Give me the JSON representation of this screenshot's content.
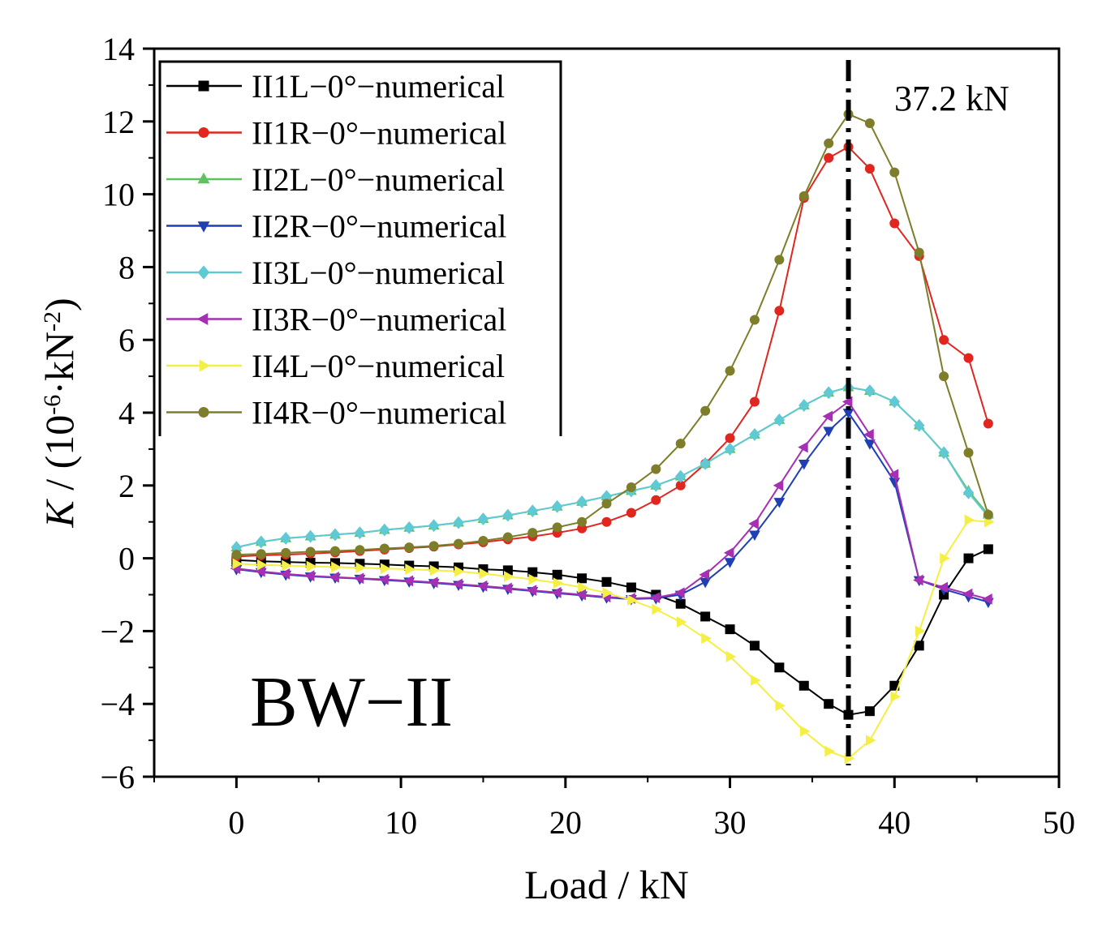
{
  "chart_data": {
    "type": "line",
    "xlabel": "Load / kN",
    "ylabel": {
      "italic": "K",
      "text": " / (10",
      "sup1": "-6",
      "mid": "·kN",
      "sup2": "-2",
      "end": ")"
    },
    "xlim": [
      -5,
      50
    ],
    "ylim": [
      -6,
      14
    ],
    "xticks": [
      0,
      10,
      20,
      30,
      40,
      50
    ],
    "yticks": [
      -6,
      -4,
      -2,
      0,
      2,
      4,
      6,
      8,
      10,
      12,
      14
    ],
    "xtick_labels": [
      "0",
      "10",
      "20",
      "30",
      "40",
      "50"
    ],
    "ytick_labels": [
      "−6",
      "−4",
      "−2",
      "0",
      "2",
      "4",
      "6",
      "8",
      "10",
      "12",
      "14"
    ],
    "grid": false,
    "legend_position": "top-left",
    "panel_label": "BW−II",
    "vline": {
      "x": 37.2,
      "label": "37.2 kN",
      "style": "dash-dot"
    },
    "x": [
      0,
      1.5,
      3,
      4.5,
      6,
      7.5,
      9,
      10.5,
      12,
      13.5,
      15,
      16.5,
      18,
      19.5,
      21,
      22.5,
      24,
      25.5,
      27,
      28.5,
      30,
      31.5,
      33,
      34.5,
      36,
      37.2,
      38.5,
      40,
      41.5,
      43,
      44.5,
      45.7
    ],
    "series": [
      {
        "name": "II1L−0°−numerical",
        "color": "#000000",
        "marker": "square",
        "values": [
          -0.05,
          -0.08,
          -0.1,
          -0.12,
          -0.13,
          -0.15,
          -0.17,
          -0.2,
          -0.22,
          -0.25,
          -0.3,
          -0.33,
          -0.38,
          -0.45,
          -0.55,
          -0.65,
          -0.8,
          -1.0,
          -1.25,
          -1.6,
          -1.95,
          -2.4,
          -3.0,
          -3.5,
          -4.0,
          -4.3,
          -4.2,
          -3.5,
          -2.4,
          -1.0,
          0.0,
          0.25
        ]
      },
      {
        "name": "II1R−0°−numerical",
        "color": "#e0261f",
        "marker": "circle",
        "values": [
          0.05,
          0.08,
          0.1,
          0.13,
          0.16,
          0.2,
          0.24,
          0.28,
          0.32,
          0.38,
          0.44,
          0.52,
          0.6,
          0.7,
          0.82,
          1.0,
          1.25,
          1.6,
          2.0,
          2.6,
          3.3,
          4.3,
          6.8,
          9.9,
          11.0,
          11.3,
          10.7,
          9.2,
          8.3,
          6.0,
          5.5,
          3.7
        ]
      },
      {
        "name": "II2L−0°−numerical",
        "color": "#5ec25e",
        "marker": "triangle-up",
        "values": [
          0.3,
          0.45,
          0.55,
          0.6,
          0.65,
          0.7,
          0.78,
          0.84,
          0.9,
          0.98,
          1.08,
          1.18,
          1.3,
          1.42,
          1.55,
          1.7,
          1.85,
          2.0,
          2.25,
          2.6,
          3.0,
          3.4,
          3.8,
          4.2,
          4.55,
          4.7,
          4.6,
          4.3,
          3.65,
          2.9,
          1.85,
          1.2
        ]
      },
      {
        "name": "II2R−0°−numerical",
        "color": "#1f3fb4",
        "marker": "triangle-down",
        "values": [
          -0.3,
          -0.38,
          -0.45,
          -0.5,
          -0.53,
          -0.56,
          -0.6,
          -0.64,
          -0.68,
          -0.73,
          -0.78,
          -0.84,
          -0.9,
          -0.96,
          -1.02,
          -1.08,
          -1.12,
          -1.1,
          -1.0,
          -0.65,
          -0.1,
          0.65,
          1.55,
          2.6,
          3.5,
          4.0,
          3.15,
          2.1,
          -0.6,
          -0.85,
          -1.05,
          -1.2
        ]
      },
      {
        "name": "II3L−0°−numerical",
        "color": "#5fc9d4",
        "marker": "diamond",
        "values": [
          0.3,
          0.45,
          0.55,
          0.6,
          0.65,
          0.7,
          0.78,
          0.84,
          0.9,
          0.98,
          1.08,
          1.18,
          1.3,
          1.42,
          1.55,
          1.7,
          1.85,
          2.0,
          2.25,
          2.6,
          3.0,
          3.4,
          3.8,
          4.2,
          4.55,
          4.7,
          4.6,
          4.3,
          3.65,
          2.9,
          1.8,
          1.15
        ]
      },
      {
        "name": "II3R−0°−numerical",
        "color": "#a62fb3",
        "marker": "triangle-left",
        "values": [
          -0.28,
          -0.36,
          -0.43,
          -0.48,
          -0.52,
          -0.55,
          -0.58,
          -0.62,
          -0.66,
          -0.71,
          -0.76,
          -0.82,
          -0.88,
          -0.94,
          -1.0,
          -1.06,
          -1.1,
          -1.08,
          -0.95,
          -0.45,
          0.15,
          0.95,
          2.0,
          3.05,
          3.9,
          4.3,
          3.4,
          2.3,
          -0.6,
          -0.8,
          -0.98,
          -1.12
        ]
      },
      {
        "name": "II4L−0°−numerical",
        "color": "#f5ef45",
        "marker": "triangle-right",
        "values": [
          -0.15,
          -0.18,
          -0.2,
          -0.22,
          -0.24,
          -0.26,
          -0.28,
          -0.3,
          -0.33,
          -0.36,
          -0.42,
          -0.5,
          -0.58,
          -0.68,
          -0.8,
          -0.95,
          -1.15,
          -1.4,
          -1.75,
          -2.2,
          -2.7,
          -3.35,
          -4.05,
          -4.75,
          -5.3,
          -5.5,
          -5.0,
          -3.8,
          -2.0,
          0.0,
          1.05,
          1.0
        ]
      },
      {
        "name": "II4R−0°−numerical",
        "color": "#7d7d2a",
        "marker": "circle",
        "values": [
          0.1,
          0.12,
          0.15,
          0.18,
          0.2,
          0.23,
          0.27,
          0.3,
          0.34,
          0.4,
          0.48,
          0.58,
          0.7,
          0.85,
          1.0,
          1.5,
          1.95,
          2.45,
          3.15,
          4.05,
          5.15,
          6.55,
          8.2,
          9.95,
          11.4,
          12.2,
          11.95,
          10.6,
          8.4,
          5.0,
          2.9,
          1.2
        ]
      }
    ]
  }
}
